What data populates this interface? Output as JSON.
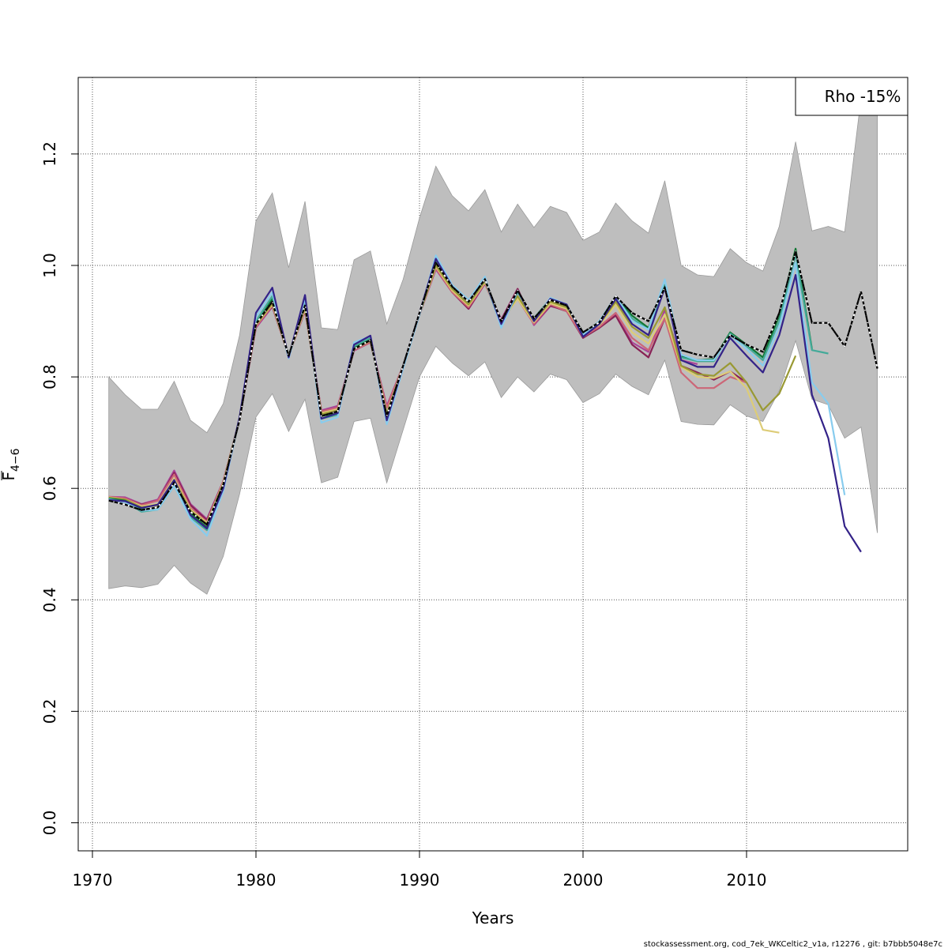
{
  "chart_data": {
    "type": "line",
    "title": "",
    "xlabel": "Years",
    "ylabel": "F̅₄₋₆",
    "ylabel_main": "F",
    "ylabel_sub": "4−6",
    "xlim": [
      1970,
      2019
    ],
    "ylim": [
      -0.05,
      1.335
    ],
    "x_ticks": [
      1970,
      1980,
      1990,
      2000,
      2010
    ],
    "y_ticks": [
      0.0,
      0.2,
      0.4,
      0.6,
      0.8,
      1.0,
      1.2
    ],
    "x_tick_labels": [
      "1970",
      "1980",
      "1990",
      "2000",
      "2010"
    ],
    "y_tick_labels": [
      "0.0",
      "0.2",
      "0.4",
      "0.6",
      "0.8",
      "1.0",
      "1.2"
    ],
    "grid": true,
    "legend_text": "Rho -15%",
    "legend_position": "top-right",
    "confidence_band": {
      "years": [
        1971,
        1972,
        1973,
        1974,
        1975,
        1976,
        1977,
        1978,
        1979,
        1980,
        1981,
        1982,
        1983,
        1984,
        1985,
        1986,
        1987,
        1988,
        1989,
        1990,
        1991,
        1992,
        1993,
        1994,
        1995,
        1996,
        1997,
        1998,
        1999,
        2000,
        2001,
        2002,
        2003,
        2004,
        2005,
        2006,
        2007,
        2008,
        2009,
        2010,
        2011,
        2012,
        2013,
        2014,
        2015,
        2016,
        2017,
        2018
      ],
      "lower": [
        0.42,
        0.425,
        0.422,
        0.428,
        0.462,
        0.43,
        0.41,
        0.478,
        0.59,
        0.728,
        0.77,
        0.702,
        0.76,
        0.61,
        0.62,
        0.72,
        0.726,
        0.61,
        0.705,
        0.8,
        0.855,
        0.825,
        0.802,
        0.827,
        0.763,
        0.8,
        0.773,
        0.805,
        0.795,
        0.754,
        0.77,
        0.805,
        0.783,
        0.768,
        0.83,
        0.72,
        0.715,
        0.714,
        0.75,
        0.73,
        0.72,
        0.775,
        0.865,
        0.76,
        0.75,
        0.69,
        0.71,
        0.52
      ],
      "upper": [
        0.8,
        0.768,
        0.742,
        0.742,
        0.792,
        0.722,
        0.7,
        0.752,
        0.875,
        1.08,
        1.13,
        0.996,
        1.115,
        0.888,
        0.885,
        1.01,
        1.026,
        0.895,
        0.975,
        1.085,
        1.178,
        1.125,
        1.098,
        1.136,
        1.06,
        1.11,
        1.068,
        1.106,
        1.095,
        1.045,
        1.06,
        1.112,
        1.08,
        1.058,
        1.152,
        1.0,
        0.983,
        0.98,
        1.03,
        1.005,
        0.99,
        1.07,
        1.222,
        1.062,
        1.07,
        1.06,
        1.3,
        1.3
      ]
    },
    "series": [
      {
        "color": "#000000",
        "dashed": true,
        "x": [
          1971,
          1972,
          1973,
          1974,
          1975,
          1976,
          1977,
          1978,
          1979,
          1980,
          1981,
          1982,
          1983,
          1984,
          1985,
          1986,
          1987,
          1988,
          1989,
          1990,
          1991,
          1992,
          1993,
          1994,
          1995,
          1996,
          1997,
          1998,
          1999,
          2000,
          2001,
          2002,
          2003,
          2004,
          2005,
          2006,
          2007,
          2008,
          2009,
          2010,
          2011,
          2012,
          2013,
          2014,
          2015,
          2016,
          2017,
          2018
        ],
        "y": [
          0.578,
          0.571,
          0.561,
          0.566,
          0.61,
          0.558,
          0.535,
          0.607,
          0.723,
          0.895,
          0.935,
          0.838,
          0.928,
          0.73,
          0.738,
          0.85,
          0.866,
          0.73,
          0.82,
          0.915,
          1.005,
          0.962,
          0.935,
          0.975,
          0.9,
          0.955,
          0.905,
          0.938,
          0.928,
          0.88,
          0.898,
          0.945,
          0.915,
          0.9,
          0.96,
          0.848,
          0.84,
          0.835,
          0.875,
          0.858,
          0.845,
          0.915,
          1.025,
          0.897,
          0.897,
          0.855,
          0.953,
          0.815
        ]
      },
      {
        "color": "#000000",
        "x": [
          1971,
          1972,
          1973,
          1974,
          1975,
          1976,
          1977,
          1978,
          1979,
          1980,
          1981,
          1982,
          1983,
          1984,
          1985,
          1986,
          1987,
          1988,
          1989,
          1990,
          1991,
          1992,
          1993,
          1994,
          1995,
          1996,
          1997,
          1998,
          1999,
          2000,
          2001,
          2002,
          2003,
          2004,
          2005,
          2006,
          2007,
          2008,
          2009,
          2010,
          2011,
          2012,
          2013,
          2014,
          2015,
          2016,
          2017,
          2018
        ],
        "y": [
          0.578,
          0.571,
          0.561,
          0.566,
          0.61,
          0.558,
          0.535,
          0.607,
          0.723,
          0.895,
          0.935,
          0.838,
          0.928,
          0.73,
          0.738,
          0.85,
          0.866,
          0.73,
          0.82,
          0.915,
          1.005,
          0.962,
          0.935,
          0.975,
          0.9,
          0.955,
          0.905,
          0.938,
          0.928,
          0.88,
          0.898,
          0.945,
          0.915,
          0.9,
          0.96,
          0.848,
          0.84,
          0.835,
          0.875,
          0.858,
          0.845,
          0.915,
          1.025,
          0.897,
          0.897,
          0.855,
          0.953,
          0.815
        ]
      },
      {
        "color": "#332288",
        "x": [
          1971,
          1972,
          1973,
          1974,
          1975,
          1976,
          1977,
          1978,
          1979,
          1980,
          1981,
          1982,
          1983,
          1984,
          1985,
          1986,
          1987,
          1988,
          1989,
          1990,
          1991,
          1992,
          1993,
          1994,
          1995,
          1996,
          1997,
          1998,
          1999,
          2000,
          2001,
          2002,
          2003,
          2004,
          2005,
          2006,
          2007,
          2008,
          2009,
          2010,
          2011,
          2012,
          2013,
          2014,
          2015,
          2016,
          2017
        ],
        "y": [
          0.579,
          0.577,
          0.565,
          0.571,
          0.615,
          0.552,
          0.528,
          0.6,
          0.728,
          0.915,
          0.96,
          0.835,
          0.947,
          0.725,
          0.735,
          0.858,
          0.874,
          0.722,
          0.82,
          0.915,
          1.012,
          0.962,
          0.935,
          0.975,
          0.895,
          0.955,
          0.9,
          0.94,
          0.93,
          0.872,
          0.895,
          0.94,
          0.895,
          0.875,
          0.96,
          0.83,
          0.818,
          0.818,
          0.87,
          0.838,
          0.808,
          0.875,
          0.983,
          0.768,
          0.69,
          0.532,
          0.486
        ]
      },
      {
        "color": "#88CCEE",
        "x": [
          1971,
          1972,
          1973,
          1974,
          1975,
          1976,
          1977,
          1978,
          1979,
          1980,
          1981,
          1982,
          1983,
          1984,
          1985,
          1986,
          1987,
          1988,
          1989,
          1990,
          1991,
          1992,
          1993,
          1994,
          1995,
          1996,
          1997,
          1998,
          1999,
          2000,
          2001,
          2002,
          2003,
          2004,
          2005,
          2006,
          2007,
          2008,
          2009,
          2010,
          2011,
          2012,
          2013,
          2014,
          2015,
          2016
        ],
        "y": [
          0.58,
          0.575,
          0.56,
          0.562,
          0.605,
          0.545,
          0.515,
          0.595,
          0.726,
          0.908,
          0.952,
          0.833,
          0.94,
          0.718,
          0.728,
          0.862,
          0.873,
          0.715,
          0.815,
          0.912,
          1.018,
          0.965,
          0.938,
          0.98,
          0.888,
          0.955,
          0.9,
          0.942,
          0.93,
          0.875,
          0.9,
          0.945,
          0.9,
          0.885,
          0.975,
          0.84,
          0.83,
          0.83,
          0.875,
          0.85,
          0.82,
          0.89,
          1.005,
          0.79,
          0.752,
          0.588
        ]
      },
      {
        "color": "#44AA99",
        "x": [
          1971,
          1972,
          1973,
          1974,
          1975,
          1976,
          1977,
          1978,
          1979,
          1980,
          1981,
          1982,
          1983,
          1984,
          1985,
          1986,
          1987,
          1988,
          1989,
          1990,
          1991,
          1992,
          1993,
          1994,
          1995,
          1996,
          1997,
          1998,
          1999,
          2000,
          2001,
          2002,
          2003,
          2004,
          2005,
          2006,
          2007,
          2008,
          2009,
          2010,
          2011,
          2012,
          2013,
          2014,
          2015
        ],
        "y": [
          0.581,
          0.576,
          0.558,
          0.562,
          0.605,
          0.548,
          0.525,
          0.6,
          0.727,
          0.9,
          0.945,
          0.835,
          0.935,
          0.725,
          0.732,
          0.855,
          0.87,
          0.725,
          0.82,
          0.912,
          1.01,
          0.962,
          0.935,
          0.975,
          0.89,
          0.952,
          0.905,
          0.94,
          0.928,
          0.878,
          0.898,
          0.942,
          0.905,
          0.885,
          0.965,
          0.835,
          0.828,
          0.828,
          0.878,
          0.855,
          0.83,
          0.9,
          1.02,
          0.848,
          0.842
        ]
      },
      {
        "color": "#117733",
        "x": [
          1971,
          1972,
          1973,
          1974,
          1975,
          1976,
          1977,
          1978,
          1979,
          1980,
          1981,
          1982,
          1983,
          1984,
          1985,
          1986,
          1987,
          1988,
          1989,
          1990,
          1991,
          1992,
          1993,
          1994,
          1995,
          1996,
          1997,
          1998,
          1999,
          2000,
          2001,
          2002,
          2003,
          2004,
          2005,
          2006,
          2007,
          2008,
          2009,
          2010,
          2011,
          2012,
          2013,
          2014
        ],
        "y": [
          0.582,
          0.578,
          0.562,
          0.565,
          0.61,
          0.555,
          0.53,
          0.605,
          0.726,
          0.898,
          0.94,
          0.838,
          0.93,
          0.73,
          0.735,
          0.853,
          0.868,
          0.728,
          0.82,
          0.913,
          1.008,
          0.962,
          0.936,
          0.976,
          0.895,
          0.953,
          0.905,
          0.94,
          0.928,
          0.88,
          0.898,
          0.943,
          0.91,
          0.888,
          0.962,
          0.838,
          0.83,
          0.832,
          0.88,
          0.858,
          0.835,
          0.91,
          1.03,
          0.85
        ]
      },
      {
        "color": "#999933",
        "x": [
          1971,
          1972,
          1973,
          1974,
          1975,
          1976,
          1977,
          1978,
          1979,
          1980,
          1981,
          1982,
          1983,
          1984,
          1985,
          1986,
          1987,
          1988,
          1989,
          1990,
          1991,
          1992,
          1993,
          1994,
          1995,
          1996,
          1997,
          1998,
          1999,
          2000,
          2001,
          2002,
          2003,
          2004,
          2005,
          2006,
          2007,
          2008,
          2009,
          2010,
          2011,
          2012,
          2013
        ],
        "y": [
          0.583,
          0.58,
          0.566,
          0.57,
          0.615,
          0.56,
          0.536,
          0.608,
          0.725,
          0.893,
          0.932,
          0.838,
          0.925,
          0.733,
          0.74,
          0.85,
          0.865,
          0.733,
          0.82,
          0.913,
          1.0,
          0.958,
          0.93,
          0.972,
          0.9,
          0.945,
          0.9,
          0.935,
          0.925,
          0.878,
          0.895,
          0.935,
          0.89,
          0.87,
          0.925,
          0.82,
          0.805,
          0.802,
          0.825,
          0.79,
          0.74,
          0.77,
          0.838
        ]
      },
      {
        "color": "#DDCC77",
        "x": [
          1971,
          1972,
          1973,
          1974,
          1975,
          1976,
          1977,
          1978,
          1979,
          1980,
          1981,
          1982,
          1983,
          1984,
          1985,
          1986,
          1987,
          1988,
          1989,
          1990,
          1991,
          1992,
          1993,
          1994,
          1995,
          1996,
          1997,
          1998,
          1999,
          2000,
          2001,
          2002,
          2003,
          2004,
          2005,
          2006,
          2007,
          2008,
          2009,
          2010,
          2011,
          2012
        ],
        "y": [
          0.584,
          0.58,
          0.568,
          0.572,
          0.618,
          0.562,
          0.538,
          0.61,
          0.725,
          0.893,
          0.93,
          0.838,
          0.922,
          0.735,
          0.742,
          0.85,
          0.865,
          0.735,
          0.82,
          0.913,
          0.998,
          0.955,
          0.928,
          0.97,
          0.9,
          0.94,
          0.898,
          0.932,
          0.922,
          0.878,
          0.893,
          0.93,
          0.88,
          0.86,
          0.912,
          0.818,
          0.8,
          0.798,
          0.81,
          0.78,
          0.705,
          0.7
        ]
      },
      {
        "color": "#CC6677",
        "x": [
          1971,
          1972,
          1973,
          1974,
          1975,
          1976,
          1977,
          1978,
          1979,
          1980,
          1981,
          1982,
          1983,
          1984,
          1985,
          1986,
          1987,
          1988,
          1989,
          1990,
          1991,
          1992,
          1993,
          1994,
          1995,
          1996,
          1997,
          1998,
          1999,
          2000,
          2001,
          2002,
          2003,
          2004,
          2005,
          2006,
          2007,
          2008,
          2009,
          2010
        ],
        "y": [
          0.585,
          0.582,
          0.57,
          0.578,
          0.625,
          0.565,
          0.54,
          0.612,
          0.725,
          0.89,
          0.928,
          0.838,
          0.92,
          0.738,
          0.745,
          0.848,
          0.862,
          0.745,
          0.82,
          0.912,
          0.995,
          0.952,
          0.925,
          0.968,
          0.9,
          0.94,
          0.895,
          0.93,
          0.918,
          0.872,
          0.89,
          0.915,
          0.87,
          0.848,
          0.905,
          0.808,
          0.78,
          0.78,
          0.8,
          0.79
        ]
      },
      {
        "color": "#882255",
        "x": [
          1971,
          1972,
          1973,
          1974,
          1975,
          1976,
          1977,
          1978,
          1979,
          1980,
          1981,
          1982,
          1983,
          1984,
          1985,
          1986,
          1987,
          1988,
          1989,
          1990,
          1991,
          1992,
          1993,
          1994,
          1995,
          1996,
          1997,
          1998,
          1999,
          2000,
          2001,
          2002,
          2003,
          2004,
          2005,
          2006,
          2007,
          2008,
          2009,
          2010
        ],
        "y": [
          0.584,
          0.582,
          0.571,
          0.578,
          0.628,
          0.57,
          0.543,
          0.612,
          0.724,
          0.89,
          0.927,
          0.838,
          0.92,
          0.738,
          0.745,
          0.848,
          0.862,
          0.745,
          0.82,
          0.912,
          0.995,
          0.952,
          0.922,
          0.968,
          0.902,
          0.958,
          0.895,
          0.928,
          0.918,
          0.87,
          0.888,
          0.91,
          0.858,
          0.835,
          0.905,
          0.82,
          0.808,
          0.795,
          0.81,
          0.79
        ]
      },
      {
        "color": "#AA4499",
        "x": [
          1971,
          1972,
          1973,
          1974,
          1975,
          1976,
          1977,
          1978,
          1979,
          1980,
          1981,
          1982,
          1983,
          1984,
          1985,
          1986,
          1987,
          1988,
          1989,
          1990,
          1991,
          1992,
          1993,
          1994,
          1995,
          1996,
          1997,
          1998,
          1999,
          2000,
          2001,
          2002,
          2003,
          2004,
          2005,
          2006,
          2007
        ],
        "y": [
          0.585,
          0.584,
          0.572,
          0.58,
          0.632,
          0.572,
          0.545,
          0.613,
          0.724,
          0.888,
          0.926,
          0.838,
          0.918,
          0.74,
          0.748,
          0.847,
          0.862,
          0.748,
          0.82,
          0.912,
          0.993,
          0.952,
          0.922,
          0.967,
          0.903,
          0.958,
          0.893,
          0.927,
          0.92,
          0.87,
          0.89,
          0.912,
          0.862,
          0.845,
          0.92,
          0.83,
          0.823
        ]
      }
    ]
  },
  "footer": {
    "text": "stockassessment.org, cod_7ek_WKCeltic2_v1a, r12276 , git: b7bbb5048e7c"
  }
}
